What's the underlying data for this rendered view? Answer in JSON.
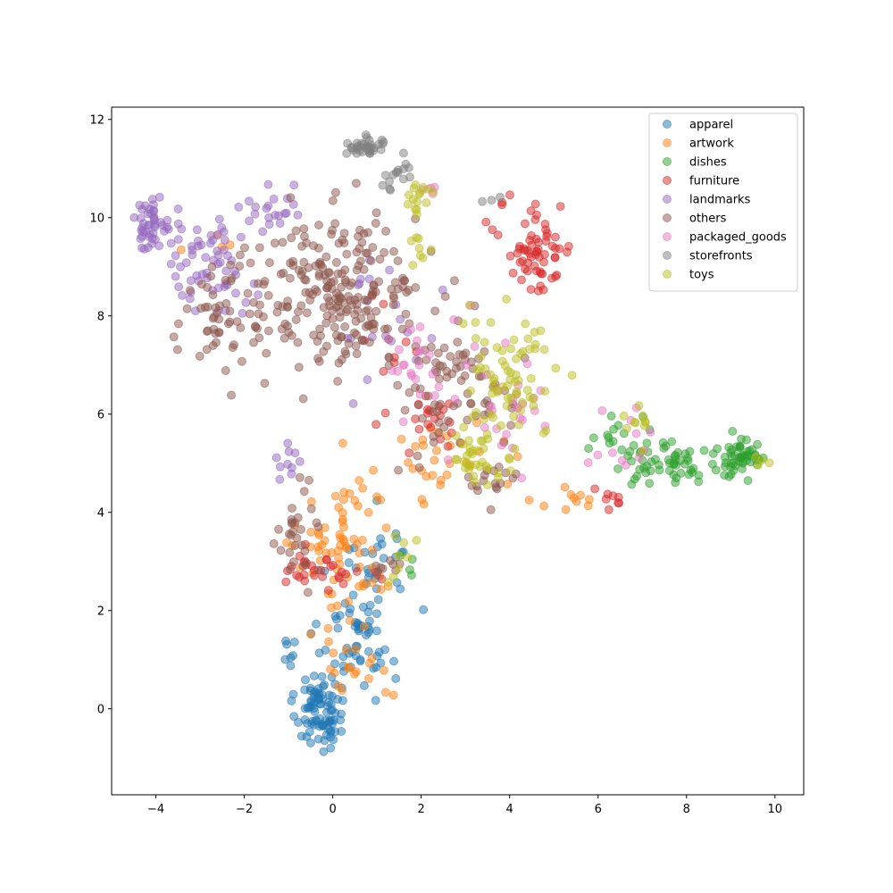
{
  "chart_data": {
    "type": "scatter",
    "title": "",
    "xlabel": "",
    "ylabel": "",
    "xlim": [
      -5,
      10.65
    ],
    "ylim": [
      -1.75,
      12.25
    ],
    "xticks": [
      -4,
      -2,
      0,
      2,
      4,
      6,
      8,
      10
    ],
    "yticks": [
      0,
      2,
      4,
      6,
      8,
      10,
      12
    ],
    "legend_position": "top-right",
    "grid": false,
    "marker_alpha": 0.5,
    "series": [
      {
        "name": "apparel",
        "color": "#1f77b4",
        "clusters": [
          {
            "center": [
              -0.3,
              0.0
            ],
            "spread": [
              0.45,
              0.75
            ],
            "count": 90
          },
          {
            "center": [
              0.6,
              1.6
            ],
            "spread": [
              0.75,
              0.9
            ],
            "count": 55
          },
          {
            "center": [
              1.0,
              3.0
            ],
            "spread": [
              0.7,
              0.8
            ],
            "count": 25
          },
          {
            "center": [
              -1.0,
              1.2
            ],
            "spread": [
              0.15,
              0.25
            ],
            "count": 6
          }
        ]
      },
      {
        "name": "artwork",
        "color": "#ff7f0e",
        "clusters": [
          {
            "center": [
              0.3,
              3.3
            ],
            "spread": [
              0.9,
              1.3
            ],
            "count": 70
          },
          {
            "center": [
              0.5,
              1.0
            ],
            "spread": [
              0.7,
              0.7
            ],
            "count": 20
          },
          {
            "center": [
              2.5,
              5.0
            ],
            "spread": [
              1.1,
              0.7
            ],
            "count": 30
          },
          {
            "center": [
              5.5,
              4.3
            ],
            "spread": [
              0.7,
              0.3
            ],
            "count": 10
          },
          {
            "center": [
              -2.5,
              9.5
            ],
            "spread": [
              0.6,
              0.3
            ],
            "count": 4
          }
        ]
      },
      {
        "name": "dishes",
        "color": "#2ca02c",
        "clusters": [
          {
            "center": [
              9.2,
              5.1
            ],
            "spread": [
              0.55,
              0.35
            ],
            "count": 55
          },
          {
            "center": [
              7.6,
              5.1
            ],
            "spread": [
              0.9,
              0.5
            ],
            "count": 55
          },
          {
            "center": [
              6.3,
              5.3
            ],
            "spread": [
              0.5,
              0.5
            ],
            "count": 12
          },
          {
            "center": [
              1.8,
              2.8
            ],
            "spread": [
              0.3,
              0.3
            ],
            "count": 4
          }
        ]
      },
      {
        "name": "furniture",
        "color": "#d62728",
        "clusters": [
          {
            "center": [
              4.6,
              9.4
            ],
            "spread": [
              0.7,
              0.8
            ],
            "count": 65
          },
          {
            "center": [
              -0.3,
              2.8
            ],
            "spread": [
              0.8,
              0.3
            ],
            "count": 30
          },
          {
            "center": [
              2.2,
              5.8
            ],
            "spread": [
              0.7,
              0.6
            ],
            "count": 20
          },
          {
            "center": [
              6.3,
              4.3
            ],
            "spread": [
              0.4,
              0.2
            ],
            "count": 8
          },
          {
            "center": [
              1.3,
              7.6
            ],
            "spread": [
              0.9,
              0.8
            ],
            "count": 10
          }
        ]
      },
      {
        "name": "landmarks",
        "color": "#9467bd",
        "clusters": [
          {
            "center": [
              -4.1,
              9.9
            ],
            "spread": [
              0.35,
              0.45
            ],
            "count": 45
          },
          {
            "center": [
              -2.8,
              9.0
            ],
            "spread": [
              0.8,
              0.8
            ],
            "count": 60
          },
          {
            "center": [
              -1.3,
              10.2
            ],
            "spread": [
              0.6,
              0.5
            ],
            "count": 20
          },
          {
            "center": [
              -1.0,
              5.0
            ],
            "spread": [
              0.25,
              0.3
            ],
            "count": 10
          },
          {
            "center": [
              1.3,
              8.0
            ],
            "spread": [
              0.9,
              1.2
            ],
            "count": 20
          }
        ]
      },
      {
        "name": "others",
        "color": "#8c564b",
        "clusters": [
          {
            "center": [
              0.2,
              8.5
            ],
            "spread": [
              1.5,
              1.3
            ],
            "count": 220
          },
          {
            "center": [
              -2.5,
              8.0
            ],
            "spread": [
              0.9,
              1.0
            ],
            "count": 60
          },
          {
            "center": [
              2.8,
              6.5
            ],
            "spread": [
              1.0,
              1.2
            ],
            "count": 80
          },
          {
            "center": [
              -0.8,
              3.5
            ],
            "spread": [
              0.4,
              0.9
            ],
            "count": 30
          },
          {
            "center": [
              3.6,
              4.6
            ],
            "spread": [
              0.5,
              0.4
            ],
            "count": 15
          },
          {
            "center": [
              1.2,
              2.9
            ],
            "spread": [
              0.4,
              0.2
            ],
            "count": 8
          }
        ]
      },
      {
        "name": "packaged_goods",
        "color": "#e377c2",
        "clusters": [
          {
            "center": [
              3.8,
              6.5
            ],
            "spread": [
              0.8,
              1.4
            ],
            "count": 30
          },
          {
            "center": [
              1.9,
              7.0
            ],
            "spread": [
              0.6,
              0.8
            ],
            "count": 20
          },
          {
            "center": [
              6.5,
              5.4
            ],
            "spread": [
              0.6,
              0.5
            ],
            "count": 12
          },
          {
            "center": [
              2.2,
              10.6
            ],
            "spread": [
              0.25,
              0.12
            ],
            "count": 4
          }
        ]
      },
      {
        "name": "storefronts",
        "color": "#7f7f7f",
        "clusters": [
          {
            "center": [
              0.8,
              11.45
            ],
            "spread": [
              0.4,
              0.15
            ],
            "count": 35
          },
          {
            "center": [
              1.5,
              10.9
            ],
            "spread": [
              0.35,
              0.35
            ],
            "count": 15
          },
          {
            "center": [
              3.6,
              10.3
            ],
            "spread": [
              0.2,
              0.12
            ],
            "count": 3
          }
        ]
      },
      {
        "name": "toys",
        "color": "#bcbd22",
        "clusters": [
          {
            "center": [
              4.0,
              6.8
            ],
            "spread": [
              0.9,
              1.1
            ],
            "count": 70
          },
          {
            "center": [
              3.3,
              5.0
            ],
            "spread": [
              0.7,
              0.5
            ],
            "count": 35
          },
          {
            "center": [
              1.9,
              10.4
            ],
            "spread": [
              0.35,
              0.35
            ],
            "count": 15
          },
          {
            "center": [
              6.9,
              5.8
            ],
            "spread": [
              0.3,
              0.3
            ],
            "count": 10
          },
          {
            "center": [
              9.8,
              5.0
            ],
            "spread": [
              0.2,
              0.2
            ],
            "count": 4
          },
          {
            "center": [
              1.6,
              3.0
            ],
            "spread": [
              0.3,
              0.5
            ],
            "count": 8
          },
          {
            "center": [
              1.8,
              9.3
            ],
            "spread": [
              0.4,
              0.3
            ],
            "count": 8
          }
        ]
      }
    ]
  }
}
